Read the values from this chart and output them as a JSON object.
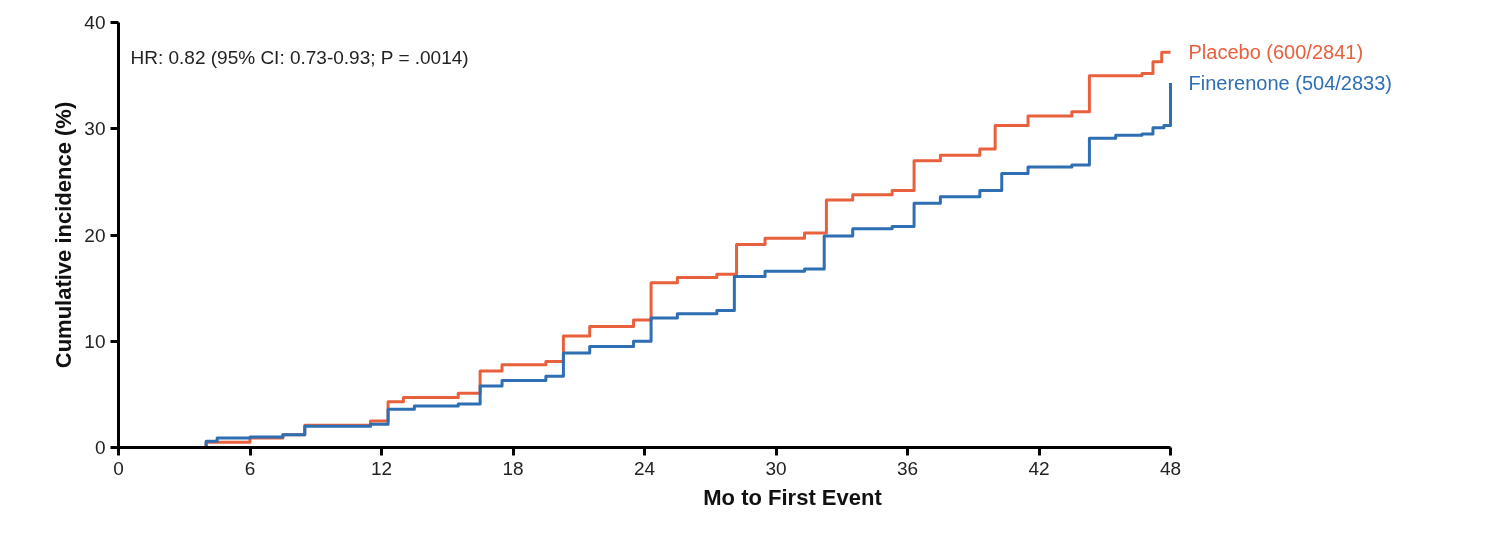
{
  "chart_data": {
    "type": "step",
    "xlabel": "Mo to First Event",
    "ylabel": "Cumulative incidence (%)",
    "annotations": [
      "HR: 0.82 (95% CI: 0.73-0.93; P = .0014)"
    ],
    "xlim": [
      0,
      48
    ],
    "xticks": [
      0,
      6,
      12,
      18,
      24,
      30,
      36,
      42,
      48
    ],
    "ylim": [
      0,
      40
    ],
    "yticks": [
      0,
      10,
      20,
      30,
      40
    ],
    "grid": false,
    "series": [
      {
        "name": "Placebo (600/2841)",
        "color": "#e8603c",
        "x": [
          0,
          4,
          6,
          7.5,
          8.5,
          11.5,
          12.3,
          13,
          15.5,
          16.5,
          17.5,
          19.5,
          20.3,
          21.5,
          23.5,
          24.3,
          25.5,
          27.3,
          28.2,
          29.5,
          31.3,
          32.3,
          33.5,
          35.3,
          36.3,
          37.5,
          39.3,
          40,
          41.5,
          43.5,
          44.3,
          46.7,
          47.2,
          47.6,
          48
        ],
        "values": [
          0,
          0.5,
          0.9,
          1.2,
          2.1,
          2.5,
          4.3,
          4.7,
          5.1,
          7.2,
          7.8,
          8.1,
          10.5,
          11.4,
          12,
          15.5,
          16,
          16.3,
          19.1,
          19.7,
          20.2,
          23.3,
          23.8,
          24.2,
          27,
          27.5,
          28.1,
          30.3,
          31.2,
          31.6,
          35,
          35.2,
          36.3,
          37.2,
          37.2
        ]
      },
      {
        "name": "Finerenone (504/2833)",
        "color": "#2e6fb4",
        "x": [
          0,
          4,
          4.5,
          6,
          7.5,
          8.5,
          11.5,
          12.3,
          13.5,
          15.5,
          16.5,
          17.5,
          19.5,
          20.3,
          21.5,
          23.5,
          24.3,
          25.5,
          27.3,
          28.1,
          29.5,
          31.3,
          32.2,
          33.5,
          35.3,
          36.3,
          37.5,
          39.3,
          40.3,
          41.5,
          43.5,
          44.3,
          45.5,
          46.7,
          47.2,
          47.7,
          48
        ],
        "values": [
          0,
          0.6,
          0.9,
          1,
          1.2,
          2,
          2.2,
          3.6,
          3.9,
          4.1,
          5.8,
          6.3,
          6.7,
          8.9,
          9.5,
          10,
          12.2,
          12.6,
          12.9,
          16.1,
          16.6,
          16.8,
          19.9,
          20.6,
          20.8,
          23,
          23.6,
          24.2,
          25.8,
          26.4,
          26.6,
          29.1,
          29.4,
          29.5,
          30.1,
          30.3,
          34.3
        ]
      }
    ]
  }
}
